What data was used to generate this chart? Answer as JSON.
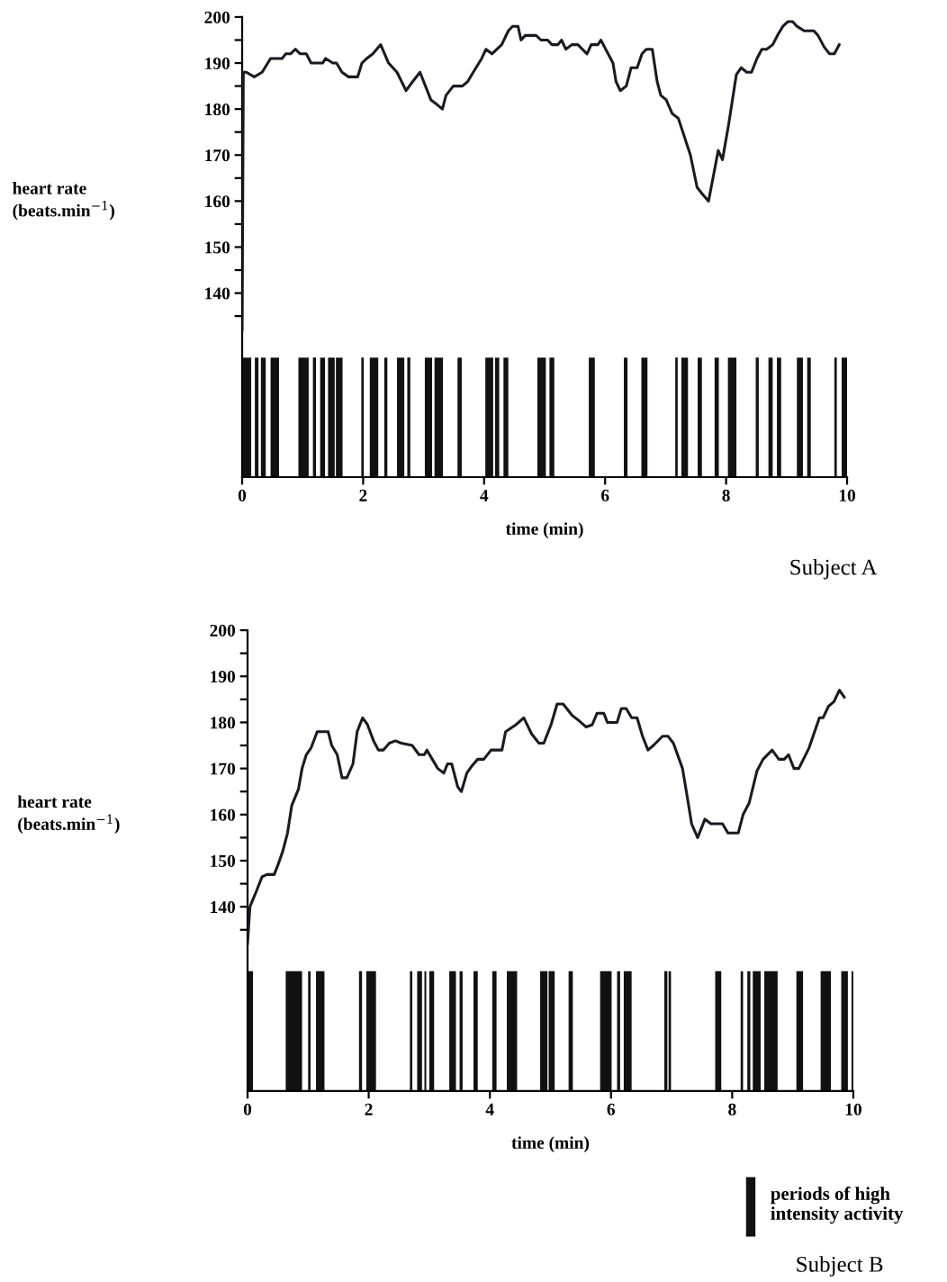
{
  "chart_data": [
    {
      "type": "line",
      "title": "Subject A",
      "xlabel": "time (min)",
      "ylabel": "heart rate\n(beats.min$^{−1}$)",
      "color": "#1a1a24",
      "xlim": [
        0,
        10
      ],
      "xticks": [
        0,
        2,
        4,
        6,
        8,
        10
      ],
      "ylim": [
        100,
        200
      ],
      "yticks": [
        {
          "value": 135,
          "label": null
        },
        140,
        {
          "value": 145,
          "label": null
        },
        150,
        {
          "value": 155,
          "label": null
        },
        160,
        {
          "value": 165,
          "label": null
        },
        170,
        {
          "value": 175,
          "label": null
        },
        180,
        {
          "value": 185,
          "label": null
        },
        190,
        {
          "value": 195,
          "label": null
        },
        200
      ],
      "x": [
        0,
        0.02,
        0.07,
        0.2,
        0.33,
        0.47,
        0.66,
        0.72,
        0.8,
        0.88,
        0.96,
        1.06,
        1.14,
        1.33,
        1.38,
        1.5,
        1.56,
        1.65,
        1.76,
        1.91,
        1.98,
        2.06,
        2.16,
        2.29,
        2.42,
        2.56,
        2.71,
        2.82,
        2.94,
        3.12,
        3.22,
        3.31,
        3.37,
        3.49,
        3.64,
        3.73,
        3.82,
        3.96,
        4.03,
        4.13,
        4.29,
        4.4,
        4.47,
        4.56,
        4.61,
        4.68,
        4.86,
        4.94,
        5.05,
        5.12,
        5.22,
        5.28,
        5.35,
        5.45,
        5.55,
        5.7,
        5.77,
        5.88,
        5.93,
        6.01,
        6.13,
        6.18,
        6.25,
        6.35,
        6.43,
        6.53,
        6.61,
        6.68,
        6.78,
        6.86,
        6.92,
        7.01,
        7.11,
        7.21,
        7.31,
        7.41,
        7.52,
        7.61,
        7.71,
        7.79,
        7.87,
        7.94,
        8.04,
        8.17,
        8.25,
        8.34,
        8.42,
        8.51,
        8.59,
        8.67,
        8.77,
        8.87,
        8.94,
        9.02,
        9.1,
        9.17,
        9.29,
        9.45,
        9.52,
        9.62,
        9.71,
        9.79,
        9.87
      ],
      "values": [
        132,
        188,
        188,
        187,
        188,
        191,
        191,
        192,
        192,
        193,
        192,
        192,
        190,
        190,
        191,
        190,
        190,
        188,
        187,
        187,
        190,
        191,
        192,
        194,
        190,
        188,
        184,
        186,
        188,
        182,
        181,
        180,
        183,
        185,
        185,
        186,
        188,
        191,
        193,
        192,
        194,
        197,
        198,
        198,
        195,
        196,
        196,
        195,
        195,
        194,
        194,
        195,
        193,
        194,
        194,
        192,
        194,
        194,
        195,
        193,
        190,
        186,
        184,
        185,
        189,
        189,
        192,
        193,
        193,
        186,
        183,
        182,
        179,
        178,
        174,
        170,
        163,
        161.5,
        160,
        165.5,
        171,
        169,
        176.5,
        187.5,
        189,
        188,
        188,
        191,
        193,
        193,
        194,
        196.5,
        198,
        199,
        199,
        198,
        197,
        197,
        196,
        193.5,
        192,
        192,
        194
      ],
      "bands": [
        {
          "axis": "x",
          "from": 0.01,
          "to": 0.15,
          "color": "#111111"
        },
        {
          "axis": "x",
          "from": 0.21,
          "to": 0.27,
          "color": "#111111"
        },
        {
          "axis": "x",
          "from": 0.31,
          "to": 0.39,
          "color": "#111111"
        },
        {
          "axis": "x",
          "from": 0.47,
          "to": 0.61,
          "color": "#111111"
        },
        {
          "axis": "x",
          "from": 0.93,
          "to": 1.1,
          "color": "#111111"
        },
        {
          "axis": "x",
          "from": 1.17,
          "to": 1.22,
          "color": "#111111"
        },
        {
          "axis": "x",
          "from": 1.29,
          "to": 1.37,
          "color": "#111111"
        },
        {
          "axis": "x",
          "from": 1.42,
          "to": 1.53,
          "color": "#111111"
        },
        {
          "axis": "x",
          "from": 1.55,
          "to": 1.66,
          "color": "#111111"
        },
        {
          "axis": "x",
          "from": 1.97,
          "to": 2.01,
          "color": "#111111"
        },
        {
          "axis": "x",
          "from": 2.11,
          "to": 2.25,
          "color": "#111111"
        },
        {
          "axis": "x",
          "from": 2.35,
          "to": 2.4,
          "color": "#111111"
        },
        {
          "axis": "x",
          "from": 2.56,
          "to": 2.68,
          "color": "#111111"
        },
        {
          "axis": "x",
          "from": 2.73,
          "to": 2.78,
          "color": "#111111"
        },
        {
          "axis": "x",
          "from": 3.02,
          "to": 3.14,
          "color": "#111111"
        },
        {
          "axis": "x",
          "from": 3.18,
          "to": 3.32,
          "color": "#111111"
        },
        {
          "axis": "x",
          "from": 3.56,
          "to": 3.63,
          "color": "#111111"
        },
        {
          "axis": "x",
          "from": 4.02,
          "to": 4.15,
          "color": "#111111"
        },
        {
          "axis": "x",
          "from": 4.18,
          "to": 4.25,
          "color": "#111111"
        },
        {
          "axis": "x",
          "from": 4.32,
          "to": 4.4,
          "color": "#111111"
        },
        {
          "axis": "x",
          "from": 4.88,
          "to": 5.02,
          "color": "#111111"
        },
        {
          "axis": "x",
          "from": 5.08,
          "to": 5.16,
          "color": "#111111"
        },
        {
          "axis": "x",
          "from": 5.73,
          "to": 5.83,
          "color": "#111111"
        },
        {
          "axis": "x",
          "from": 6.31,
          "to": 6.37,
          "color": "#111111"
        },
        {
          "axis": "x",
          "from": 6.6,
          "to": 6.7,
          "color": "#111111"
        },
        {
          "axis": "x",
          "from": 7.16,
          "to": 7.2,
          "color": "#111111"
        },
        {
          "axis": "x",
          "from": 7.26,
          "to": 7.37,
          "color": "#111111"
        },
        {
          "axis": "x",
          "from": 7.53,
          "to": 7.6,
          "color": "#111111"
        },
        {
          "axis": "x",
          "from": 7.81,
          "to": 7.88,
          "color": "#111111"
        },
        {
          "axis": "x",
          "from": 8.03,
          "to": 8.17,
          "color": "#111111"
        },
        {
          "axis": "x",
          "from": 8.49,
          "to": 8.54,
          "color": "#111111"
        },
        {
          "axis": "x",
          "from": 8.7,
          "to": 8.77,
          "color": "#111111"
        },
        {
          "axis": "x",
          "from": 8.84,
          "to": 8.91,
          "color": "#111111"
        },
        {
          "axis": "x",
          "from": 9.17,
          "to": 9.27,
          "color": "#111111"
        },
        {
          "axis": "x",
          "from": 9.34,
          "to": 9.4,
          "color": "#111111"
        },
        {
          "axis": "x",
          "from": 9.79,
          "to": 9.83,
          "color": "#111111"
        },
        {
          "axis": "x",
          "from": 9.91,
          "to": 10.0,
          "color": "#111111"
        }
      ]
    },
    {
      "type": "line",
      "title": "Subject B",
      "xlabel": "time (min)",
      "ylabel": "heart rate\n(beats.min$^{−1}$)",
      "color": "#1a1a24",
      "legend": "bottom right",
      "xlim": [
        0,
        10
      ],
      "xticks": [
        0,
        2,
        4,
        6,
        8,
        10
      ],
      "ylim": [
        100,
        200
      ],
      "yticks": [
        {
          "value": 135,
          "label": null
        },
        140,
        {
          "value": 145,
          "label": null
        },
        150,
        {
          "value": 155,
          "label": null
        },
        160,
        {
          "value": 165,
          "label": null
        },
        170,
        {
          "value": 175,
          "label": null
        },
        180,
        {
          "value": 185,
          "label": null
        },
        190,
        {
          "value": 195,
          "label": null
        },
        200
      ],
      "x": [
        0,
        0.04,
        0.15,
        0.24,
        0.32,
        0.44,
        0.5,
        0.58,
        0.66,
        0.73,
        0.84,
        0.9,
        0.97,
        1.05,
        1.15,
        1.33,
        1.39,
        1.48,
        1.56,
        1.64,
        1.74,
        1.81,
        1.9,
        1.98,
        2.08,
        2.16,
        2.24,
        2.34,
        2.44,
        2.54,
        2.72,
        2.83,
        2.92,
        2.96,
        3.05,
        3.14,
        3.24,
        3.3,
        3.37,
        3.47,
        3.53,
        3.62,
        3.7,
        3.8,
        3.9,
        4.02,
        4.2,
        4.26,
        4.43,
        4.56,
        4.69,
        4.81,
        4.89,
        5.01,
        5.11,
        5.21,
        5.36,
        5.46,
        5.59,
        5.69,
        5.77,
        5.88,
        5.94,
        6.1,
        6.17,
        6.25,
        6.34,
        6.43,
        6.52,
        6.61,
        6.7,
        6.85,
        6.94,
        7.03,
        7.18,
        7.25,
        7.33,
        7.43,
        7.55,
        7.65,
        7.84,
        7.93,
        8.1,
        8.18,
        8.28,
        8.41,
        8.51,
        8.66,
        8.77,
        8.86,
        8.93,
        9.02,
        9.1,
        9.27,
        9.44,
        9.5,
        9.59,
        9.68,
        9.77,
        9.85
      ],
      "values": [
        132,
        140,
        143.5,
        146.5,
        147,
        147,
        149,
        152,
        156,
        162,
        165.5,
        170,
        173,
        174.5,
        178,
        178,
        175,
        173,
        168,
        168,
        171,
        178,
        181,
        179.5,
        176,
        174,
        174,
        175.5,
        176,
        175.5,
        175,
        173,
        173,
        174,
        172,
        170,
        169,
        171,
        171,
        166,
        165,
        169,
        170.5,
        172,
        172,
        174,
        174,
        178,
        179.5,
        181,
        177.5,
        175.5,
        175.5,
        179.5,
        184,
        184,
        181.5,
        180.5,
        179,
        179.5,
        182,
        182,
        180,
        180,
        183,
        183,
        181,
        181,
        177,
        174,
        175,
        177,
        177,
        175.5,
        170,
        164.5,
        158,
        155,
        159,
        158,
        158,
        156,
        156,
        160,
        162.5,
        169.5,
        172,
        174,
        172,
        172,
        173,
        170,
        170,
        174.5,
        181,
        181,
        183.5,
        184.5,
        187,
        185.5
      ],
      "bands": [
        {
          "axis": "x",
          "from": 0.0,
          "to": 0.09,
          "color": "#111111",
          "label": "periods of high\nintensity activity"
        },
        {
          "axis": "x",
          "from": 0.63,
          "to": 0.9,
          "color": "#111111"
        },
        {
          "axis": "x",
          "from": 1.0,
          "to": 1.04,
          "color": "#111111"
        },
        {
          "axis": "x",
          "from": 1.13,
          "to": 1.27,
          "color": "#111111"
        },
        {
          "axis": "x",
          "from": 1.84,
          "to": 1.89,
          "color": "#111111"
        },
        {
          "axis": "x",
          "from": 1.96,
          "to": 2.12,
          "color": "#111111"
        },
        {
          "axis": "x",
          "from": 2.68,
          "to": 2.72,
          "color": "#111111"
        },
        {
          "axis": "x",
          "from": 2.8,
          "to": 2.88,
          "color": "#111111"
        },
        {
          "axis": "x",
          "from": 2.92,
          "to": 2.95,
          "color": "#111111"
        },
        {
          "axis": "x",
          "from": 3.0,
          "to": 3.08,
          "color": "#111111"
        },
        {
          "axis": "x",
          "from": 3.33,
          "to": 3.44,
          "color": "#111111"
        },
        {
          "axis": "x",
          "from": 3.5,
          "to": 3.55,
          "color": "#111111"
        },
        {
          "axis": "x",
          "from": 3.73,
          "to": 3.8,
          "color": "#111111"
        },
        {
          "axis": "x",
          "from": 4.04,
          "to": 4.11,
          "color": "#111111"
        },
        {
          "axis": "x",
          "from": 4.28,
          "to": 4.45,
          "color": "#111111"
        },
        {
          "axis": "x",
          "from": 4.83,
          "to": 4.95,
          "color": "#111111"
        },
        {
          "axis": "x",
          "from": 4.97,
          "to": 5.07,
          "color": "#111111"
        },
        {
          "axis": "x",
          "from": 5.3,
          "to": 5.37,
          "color": "#111111"
        },
        {
          "axis": "x",
          "from": 5.82,
          "to": 6.01,
          "color": "#111111"
        },
        {
          "axis": "x",
          "from": 6.1,
          "to": 6.15,
          "color": "#111111"
        },
        {
          "axis": "x",
          "from": 6.21,
          "to": 6.34,
          "color": "#111111"
        },
        {
          "axis": "x",
          "from": 6.88,
          "to": 6.93,
          "color": "#111111"
        },
        {
          "axis": "x",
          "from": 6.95,
          "to": 6.99,
          "color": "#111111"
        },
        {
          "axis": "x",
          "from": 7.72,
          "to": 7.82,
          "color": "#111111"
        },
        {
          "axis": "x",
          "from": 8.14,
          "to": 8.18,
          "color": "#111111"
        },
        {
          "axis": "x",
          "from": 8.25,
          "to": 8.3,
          "color": "#111111"
        },
        {
          "axis": "x",
          "from": 8.34,
          "to": 8.47,
          "color": "#111111"
        },
        {
          "axis": "x",
          "from": 8.53,
          "to": 8.75,
          "color": "#111111"
        },
        {
          "axis": "x",
          "from": 9.06,
          "to": 9.17,
          "color": "#111111"
        },
        {
          "axis": "x",
          "from": 9.46,
          "to": 9.63,
          "color": "#111111"
        },
        {
          "axis": "x",
          "from": 9.8,
          "to": 9.91,
          "color": "#111111"
        },
        {
          "axis": "x",
          "from": 9.97,
          "to": 10.0,
          "color": "#111111"
        }
      ]
    }
  ]
}
